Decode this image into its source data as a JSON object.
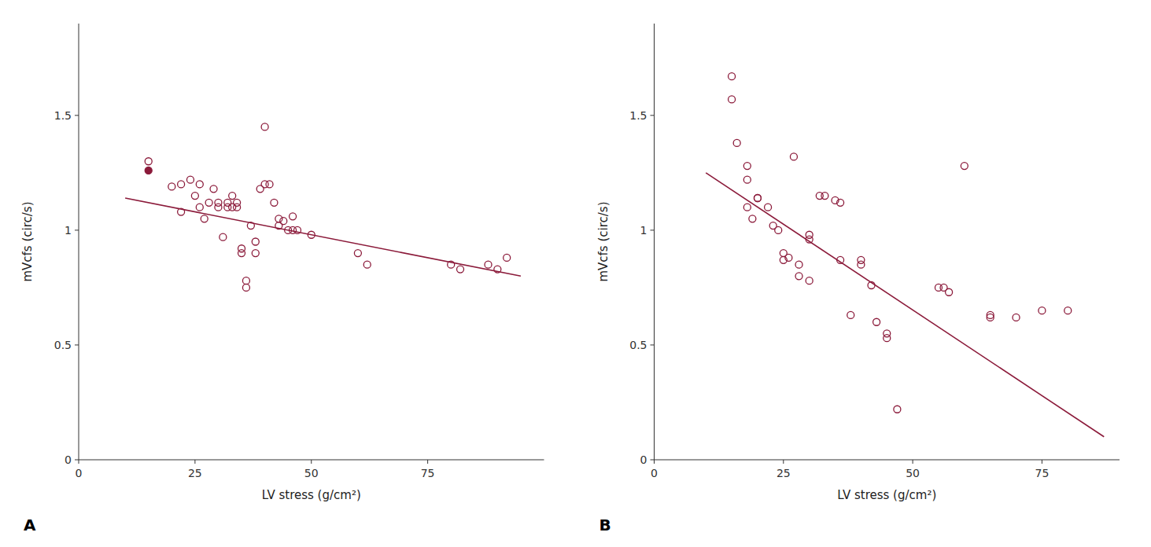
{
  "chart_data": [
    {
      "type": "scatter",
      "title": "A",
      "xlabel": "LV stress (g/cm²)",
      "ylabel": "mVcfs (circ/s)",
      "color": "#8B1A3A",
      "grid": false,
      "xlim": [
        0,
        100
      ],
      "ylim": [
        0,
        1.9
      ],
      "xticks": [
        0,
        25,
        50,
        75
      ],
      "yticks": [
        0,
        0.5,
        1,
        1.5
      ],
      "series": [
        {
          "type": "scatter",
          "marker": "open",
          "x": [
            15,
            20,
            22,
            22,
            24,
            25,
            26,
            26,
            27,
            28,
            29,
            30,
            30,
            31,
            32,
            32,
            33,
            33,
            34,
            34,
            35,
            35,
            36,
            36,
            37,
            38,
            38,
            39,
            40,
            40,
            41,
            42,
            43,
            43,
            44,
            45,
            46,
            46,
            47,
            50,
            60,
            62,
            80,
            82,
            88,
            90,
            92
          ],
          "values": [
            1.3,
            1.19,
            1.2,
            1.08,
            1.22,
            1.15,
            1.2,
            1.1,
            1.05,
            1.12,
            1.18,
            1.1,
            1.12,
            0.97,
            1.1,
            1.12,
            1.1,
            1.15,
            1.12,
            1.1,
            0.9,
            0.92,
            0.75,
            0.78,
            1.02,
            0.95,
            0.9,
            1.18,
            1.45,
            1.2,
            1.2,
            1.12,
            1.02,
            1.05,
            1.04,
            1.0,
            1.0,
            1.06,
            1.0,
            0.98,
            0.9,
            0.85,
            0.85,
            0.83,
            0.85,
            0.83,
            0.88
          ]
        },
        {
          "type": "scatter",
          "marker": "filled",
          "x": [
            15
          ],
          "values": [
            1.26
          ]
        },
        {
          "type": "line",
          "line_style": "solid",
          "x": [
            10,
            95
          ],
          "values": [
            1.14,
            0.8
          ]
        }
      ]
    },
    {
      "type": "scatter",
      "title": "B",
      "xlabel": "LV stress (g/cm²)",
      "ylabel": "mVcfs (circ/s)",
      "color": "#8B1A3A",
      "grid": false,
      "xlim": [
        0,
        90
      ],
      "ylim": [
        0,
        1.9
      ],
      "xticks": [
        0,
        25,
        50,
        75
      ],
      "yticks": [
        0,
        0.5,
        1,
        1.5
      ],
      "series": [
        {
          "type": "scatter",
          "marker": "open",
          "x": [
            15,
            15,
            16,
            18,
            18,
            18,
            19,
            20,
            20,
            22,
            23,
            24,
            25,
            25,
            26,
            27,
            28,
            28,
            30,
            30,
            30,
            32,
            33,
            35,
            36,
            36,
            38,
            40,
            40,
            42,
            43,
            45,
            45,
            47,
            55,
            56,
            57,
            60,
            65,
            65,
            70,
            75,
            80
          ],
          "values": [
            1.67,
            1.57,
            1.38,
            1.28,
            1.22,
            1.1,
            1.05,
            1.14,
            1.14,
            1.1,
            1.02,
            1.0,
            0.9,
            0.87,
            0.88,
            1.32,
            0.85,
            0.8,
            0.98,
            0.96,
            0.78,
            1.15,
            1.15,
            1.13,
            1.12,
            0.87,
            0.63,
            0.87,
            0.85,
            0.76,
            0.6,
            0.55,
            0.53,
            0.22,
            0.75,
            0.75,
            0.73,
            1.28,
            0.63,
            0.62,
            0.62,
            0.65,
            0.65
          ]
        },
        {
          "type": "line",
          "line_style": "solid",
          "x": [
            10,
            87
          ],
          "values": [
            1.25,
            0.1
          ]
        }
      ]
    }
  ]
}
